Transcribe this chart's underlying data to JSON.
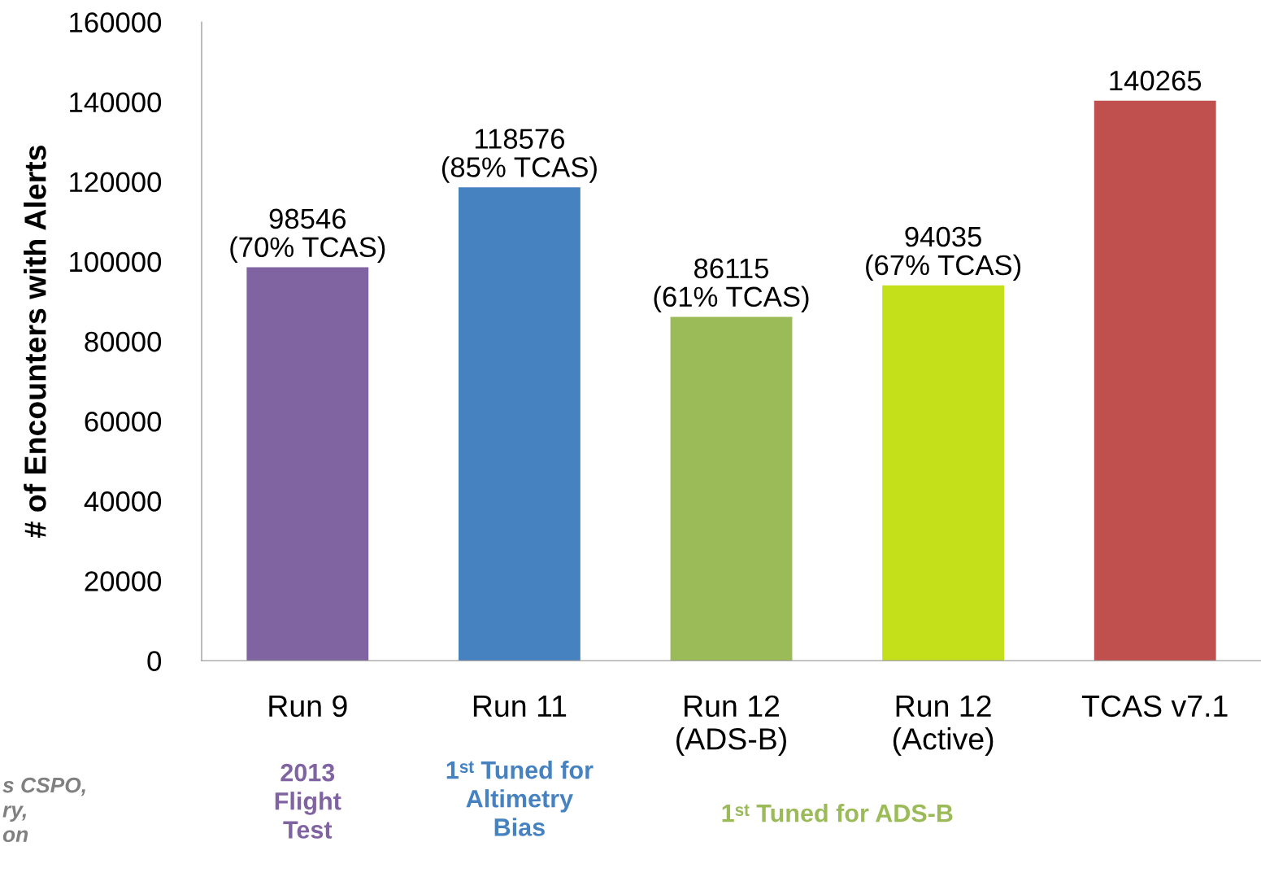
{
  "chart_data": {
    "type": "bar",
    "ylabel": "# of Encounters with Alerts",
    "categories": [
      "Run 9",
      "Run 11",
      "Run 12\n(ADS-B)",
      "Run 12\n(Active)",
      "TCAS v7.1"
    ],
    "values": [
      98546,
      118576,
      86115,
      94035,
      140265
    ],
    "colors": [
      "#8064a2",
      "#4681c0",
      "#9bbb59",
      "#c4e01a",
      "#c0504d"
    ],
    "value_labels": [
      "98546\n(70% TCAS)",
      "118576\n(85% TCAS)",
      "86115\n(61% TCAS)",
      "94035\n(67% TCAS)",
      "140265"
    ],
    "ylim": [
      0,
      160000
    ],
    "yticks": [
      0,
      20000,
      40000,
      60000,
      80000,
      100000,
      120000,
      140000,
      160000
    ],
    "grid": false,
    "legend": false,
    "annotations": [
      "2013\nFlight\nTest",
      "1ˢᵗ Tuned for\nAltimetry\nBias",
      "1ˢᵗ Tuned for ADS-B",
      "s CSPO,\nry,\non"
    ]
  }
}
